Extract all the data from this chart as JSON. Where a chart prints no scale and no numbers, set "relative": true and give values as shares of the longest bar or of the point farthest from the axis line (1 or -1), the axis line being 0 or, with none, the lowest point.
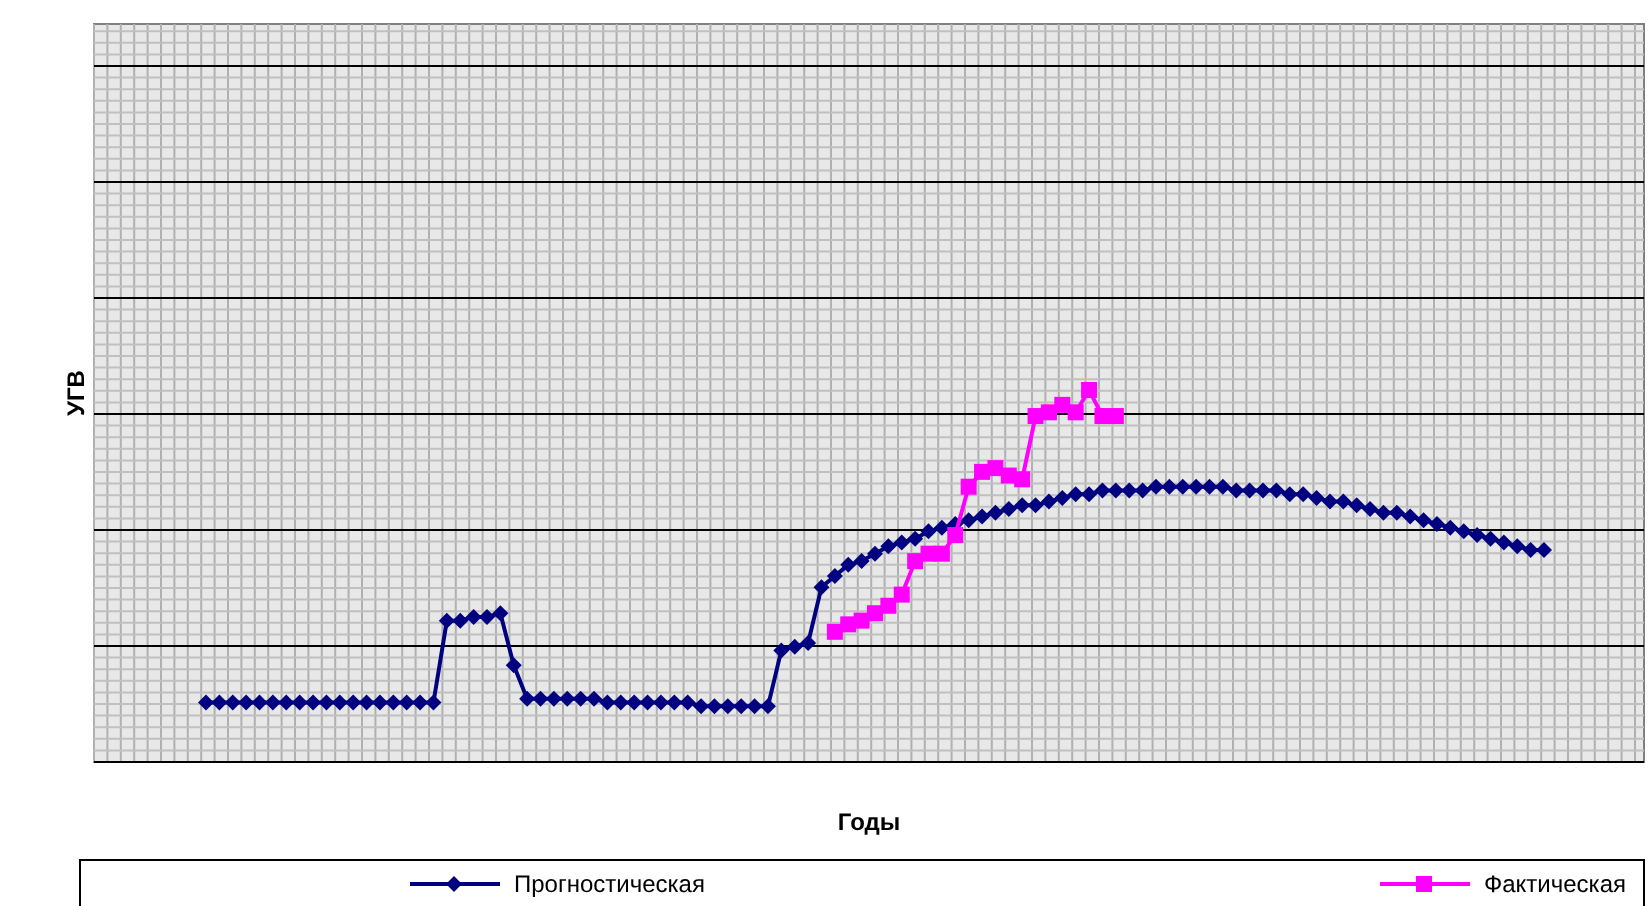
{
  "chart_data": {
    "type": "line",
    "relative": true,
    "xlabel": "Годы",
    "ylabel": "УГВ",
    "grid": true,
    "legend": "bottom",
    "categories": [
      null,
      null,
      null,
      null,
      null,
      null,
      null,
      null,
      null,
      null,
      null,
      null,
      null,
      null,
      null,
      null,
      null,
      null,
      null,
      null,
      null,
      null,
      null,
      null,
      null,
      null,
      null,
      null,
      null,
      null,
      null,
      null,
      null,
      null,
      null,
      null,
      null,
      null,
      null,
      null,
      null,
      null,
      null,
      null,
      null,
      null,
      null,
      null,
      null,
      null,
      null,
      null,
      null,
      null,
      null,
      null,
      null,
      null,
      null,
      null,
      null,
      null,
      null,
      null,
      null,
      null,
      null,
      null,
      null,
      null,
      null,
      null,
      null,
      null,
      null,
      null,
      null,
      null,
      null,
      null,
      null,
      null,
      null,
      null,
      null,
      null,
      null,
      null,
      null,
      null,
      null,
      null,
      null,
      null,
      null,
      null,
      null,
      null,
      null,
      null,
      null
    ],
    "series": [
      {
        "name": "Прогностическая",
        "color": "#000080",
        "marker": "diamond",
        "values": [
          0.16,
          0.16,
          0.16,
          0.16,
          0.16,
          0.16,
          0.16,
          0.16,
          0.16,
          0.16,
          0.16,
          0.16,
          0.16,
          0.16,
          0.16,
          0.16,
          0.16,
          0.16,
          0.38,
          0.38,
          0.39,
          0.39,
          0.4,
          0.26,
          0.17,
          0.17,
          0.17,
          0.17,
          0.17,
          0.17,
          0.16,
          0.16,
          0.16,
          0.16,
          0.16,
          0.16,
          0.16,
          0.15,
          0.15,
          0.15,
          0.15,
          0.15,
          0.15,
          0.3,
          0.31,
          0.32,
          0.47,
          0.5,
          0.53,
          0.54,
          0.56,
          0.58,
          0.59,
          0.6,
          0.62,
          0.63,
          0.64,
          0.65,
          0.66,
          0.67,
          0.68,
          0.69,
          0.69,
          0.7,
          0.71,
          0.72,
          0.72,
          0.73,
          0.73,
          0.73,
          0.73,
          0.74,
          0.74,
          0.74,
          0.74,
          0.74,
          0.74,
          0.73,
          0.73,
          0.73,
          0.73,
          0.72,
          0.72,
          0.71,
          0.7,
          0.7,
          0.69,
          0.68,
          0.67,
          0.67,
          0.66,
          0.65,
          0.64,
          0.63,
          0.62,
          0.61,
          0.6,
          0.59,
          0.58,
          0.57,
          0.57
        ]
      },
      {
        "name": "Фактическая",
        "color": "#ff00ff",
        "marker": "square",
        "values": [
          null,
          null,
          null,
          null,
          null,
          null,
          null,
          null,
          null,
          null,
          null,
          null,
          null,
          null,
          null,
          null,
          null,
          null,
          null,
          null,
          null,
          null,
          null,
          null,
          null,
          null,
          null,
          null,
          null,
          null,
          null,
          null,
          null,
          null,
          null,
          null,
          null,
          null,
          null,
          null,
          null,
          null,
          null,
          null,
          null,
          null,
          null,
          0.35,
          0.37,
          0.38,
          0.4,
          0.42,
          0.45,
          0.54,
          0.56,
          0.56,
          0.61,
          0.74,
          0.78,
          0.79,
          0.77,
          0.76,
          0.93,
          0.94,
          0.96,
          0.94,
          1,
          0.93,
          0.93,
          null,
          null,
          null,
          null,
          null,
          null,
          null,
          null,
          null,
          null,
          null,
          null,
          null,
          null,
          null,
          null,
          null,
          null,
          null,
          null,
          null,
          null,
          null,
          null,
          null,
          null,
          null,
          null,
          null,
          null,
          null,
          null
        ]
      }
    ]
  }
}
